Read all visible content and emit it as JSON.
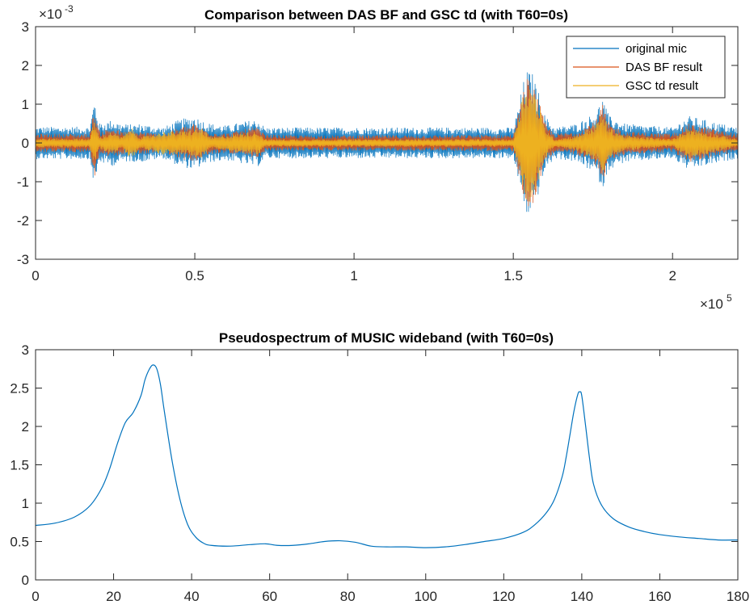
{
  "chart_data": [
    {
      "type": "line",
      "title": "Comparison between DAS BF and GSC td (with T60=0s)",
      "xlabel": "",
      "ylabel": "",
      "xlim": [
        0,
        220500
      ],
      "ylim": [
        -0.003,
        0.003
      ],
      "x_ticks": [
        0,
        50000,
        100000,
        150000,
        200000
      ],
      "x_tick_labels": [
        "0",
        "0.5",
        "1",
        "1.5",
        "2"
      ],
      "y_tick_labels": [
        "-3",
        "-2",
        "-1",
        "0",
        "1",
        "2",
        "3"
      ],
      "x_exponent_label": "×10",
      "x_exponent": "5",
      "y_exponent_label": "×10",
      "y_exponent": "-3",
      "grid": false,
      "legend_position": "top-right",
      "series": [
        {
          "name": "original mic",
          "color": "#0072BD",
          "envelope": {
            "x": [
              0,
              17000,
              18500,
              20000,
              24000,
              27000,
              30000,
              33000,
              40000,
              45000,
              50000,
              52000,
              55000,
              60000,
              68000,
              70000,
              72000,
              80000,
              100000,
              120000,
              150000,
              152000,
              154000,
              156000,
              158000,
              160000,
              163000,
              170000,
              176000,
              178000,
              180000,
              185000,
              200000,
              205000,
              220500
            ],
            "amplitude": [
              0.00042,
              0.00042,
              0.00115,
              0.0005,
              0.0006,
              0.0005,
              0.00048,
              0.0005,
              0.0004,
              0.0006,
              0.0007,
              0.0006,
              0.0005,
              0.00045,
              0.0006,
              0.0006,
              0.0004,
              0.0004,
              0.0004,
              0.0004,
              0.0004,
              0.0011,
              0.0019,
              0.0018,
              0.0013,
              0.0007,
              0.0004,
              0.0005,
              0.0008,
              0.0012,
              0.0007,
              0.0005,
              0.0004,
              0.0007,
              0.0004
            ]
          }
        },
        {
          "name": "DAS BF result",
          "color": "#D95319",
          "envelope": {
            "x": [
              0,
              17000,
              18500,
              20000,
              24000,
              27000,
              30000,
              33000,
              40000,
              45000,
              50000,
              52000,
              55000,
              60000,
              68000,
              70000,
              72000,
              80000,
              100000,
              120000,
              150000,
              152000,
              154000,
              156000,
              158000,
              160000,
              163000,
              170000,
              176000,
              178000,
              180000,
              185000,
              200000,
              205000,
              220500
            ],
            "amplitude": [
              0.00024,
              0.00024,
              0.0009,
              0.0003,
              0.0004,
              0.0003,
              0.0003,
              0.0003,
              0.00022,
              0.0004,
              0.0005,
              0.0004,
              0.0003,
              0.00025,
              0.0004,
              0.0004,
              0.00022,
              0.0002,
              0.0002,
              0.0002,
              0.00022,
              0.0009,
              0.0017,
              0.0016,
              0.0011,
              0.0005,
              0.00024,
              0.0003,
              0.0006,
              0.001,
              0.0005,
              0.0003,
              0.00024,
              0.0005,
              0.00024
            ]
          }
        },
        {
          "name": "GSC td result",
          "color": "#EDB120",
          "envelope": {
            "x": [
              0,
              17000,
              18500,
              20000,
              24000,
              27000,
              30000,
              33000,
              40000,
              45000,
              50000,
              52000,
              55000,
              60000,
              68000,
              70000,
              72000,
              80000,
              100000,
              120000,
              150000,
              152000,
              154000,
              156000,
              158000,
              160000,
              163000,
              170000,
              176000,
              178000,
              180000,
              185000,
              200000,
              205000,
              220500
            ],
            "amplitude": [
              0.00012,
              0.00012,
              0.0006,
              0.00015,
              0.0003,
              0.00015,
              0.0004,
              0.00015,
              0.0003,
              0.0003,
              0.00035,
              0.0004,
              0.00015,
              0.0002,
              0.0003,
              0.0003,
              0.0001,
              0.0001,
              0.0001,
              0.0001,
              0.0001,
              0.0009,
              0.0016,
              0.0015,
              0.001,
              0.0004,
              0.0001,
              0.0002,
              0.0005,
              0.0008,
              0.0004,
              0.0002,
              0.0001,
              0.0004,
              0.0001
            ]
          }
        }
      ]
    },
    {
      "type": "line",
      "title": "Pseudospectrum of MUSIC wideband (with T60=0s)",
      "xlabel": "",
      "ylabel": "",
      "xlim": [
        0,
        180
      ],
      "ylim": [
        0,
        3
      ],
      "x_tick_labels": [
        "0",
        "20",
        "40",
        "60",
        "80",
        "100",
        "120",
        "140",
        "160",
        "180"
      ],
      "y_tick_labels": [
        "0",
        "0.5",
        "1",
        "1.5",
        "2",
        "2.5",
        "3"
      ],
      "grid": false,
      "series": [
        {
          "color": "#0072BD",
          "x": [
            0,
            5,
            10,
            14,
            17,
            19,
            21,
            23,
            25,
            27,
            28,
            29,
            30,
            31,
            32,
            33,
            35,
            37,
            39,
            41,
            43,
            45,
            50,
            55,
            59,
            62,
            66,
            70,
            74,
            78,
            82,
            86,
            90,
            95,
            100,
            105,
            110,
            115,
            120,
            125,
            128,
            131,
            133,
            135,
            136,
            137,
            138,
            139,
            139.5,
            140,
            141,
            142,
            143,
            145,
            148,
            152,
            156,
            160,
            165,
            170,
            175,
            180
          ],
          "y": [
            0.71,
            0.74,
            0.82,
            0.97,
            1.2,
            1.45,
            1.78,
            2.05,
            2.18,
            2.4,
            2.6,
            2.73,
            2.8,
            2.76,
            2.55,
            2.2,
            1.55,
            1.05,
            0.72,
            0.56,
            0.48,
            0.45,
            0.44,
            0.46,
            0.47,
            0.45,
            0.45,
            0.47,
            0.5,
            0.51,
            0.49,
            0.44,
            0.43,
            0.43,
            0.42,
            0.43,
            0.46,
            0.5,
            0.54,
            0.62,
            0.72,
            0.88,
            1.05,
            1.35,
            1.6,
            1.9,
            2.2,
            2.42,
            2.45,
            2.4,
            2.0,
            1.58,
            1.25,
            0.98,
            0.8,
            0.69,
            0.63,
            0.59,
            0.56,
            0.54,
            0.52,
            0.52
          ]
        }
      ]
    }
  ]
}
